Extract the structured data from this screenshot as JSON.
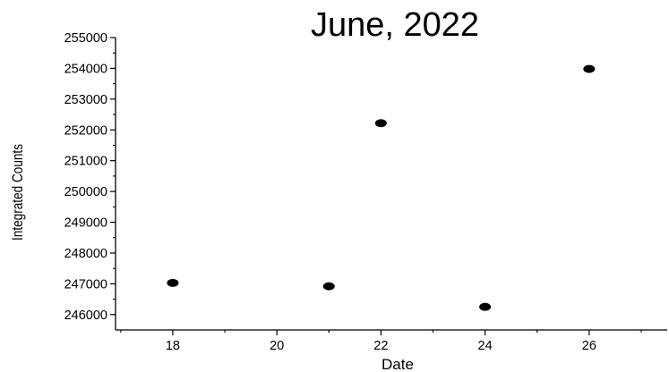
{
  "chart_data": {
    "type": "scatter",
    "title": "June, 2022",
    "xlabel": "Date",
    "ylabel": "Integrated Counts",
    "xlim": [
      16.9,
      27.5
    ],
    "ylim": [
      245500,
      255000
    ],
    "x_ticks": [
      18,
      20,
      22,
      24,
      26
    ],
    "y_ticks": [
      246000,
      247000,
      248000,
      249000,
      250000,
      251000,
      252000,
      253000,
      254000,
      255000
    ],
    "grid": false,
    "points": [
      {
        "x": 18,
        "y": 247030
      },
      {
        "x": 21,
        "y": 246920
      },
      {
        "x": 22,
        "y": 252220
      },
      {
        "x": 24,
        "y": 246250
      },
      {
        "x": 26,
        "y": 253980
      }
    ],
    "marker_color": "#000000"
  }
}
